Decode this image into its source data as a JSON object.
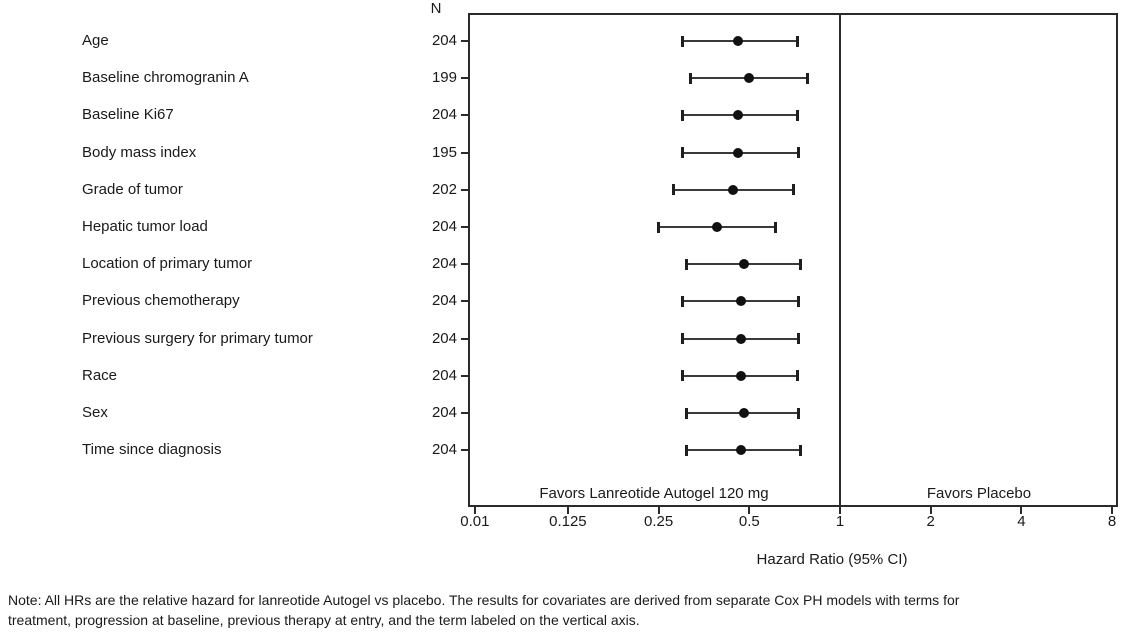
{
  "note": {
    "line1": "Note: All HRs are the relative hazard for lanreotide Autogel vs placebo. The results for covariates are derived from separate Cox PH models with terms for",
    "line2": "treatment, progression at baseline, previous therapy at entry, and the term labeled on the vertical axis."
  },
  "chart_data": {
    "type": "scatter",
    "subtype": "forest-plot",
    "title": "",
    "xlabel": "Hazard Ratio (95% CI)",
    "column_headers": {
      "n": "N"
    },
    "x_ticks": [
      "0.01",
      "0.125",
      "0.25",
      "0.5",
      "1",
      "2",
      "4",
      "8"
    ],
    "x_scale": "log2, leftmost tick 0.01 drawn one slot left of 0.125 (compressed)",
    "xlim_drawn": [
      0.01,
      8
    ],
    "reference_line_x": 1,
    "grid": false,
    "favors_left_label": "Favors Lanreotide Autogel 120 mg",
    "favors_right_label": "Favors Placebo",
    "rows": [
      {
        "label": "Age",
        "n": 204,
        "hr": 0.46,
        "ci_low": 0.3,
        "ci_high": 0.72
      },
      {
        "label": "Baseline chromogranin A",
        "n": 199,
        "hr": 0.5,
        "ci_low": 0.32,
        "ci_high": 0.78
      },
      {
        "label": "Baseline Ki67",
        "n": 204,
        "hr": 0.46,
        "ci_low": 0.3,
        "ci_high": 0.72
      },
      {
        "label": "Body mass index",
        "n": 195,
        "hr": 0.46,
        "ci_low": 0.3,
        "ci_high": 0.73
      },
      {
        "label": "Grade of tumor",
        "n": 202,
        "hr": 0.44,
        "ci_low": 0.28,
        "ci_high": 0.7
      },
      {
        "label": "Hepatic tumor load",
        "n": 204,
        "hr": 0.39,
        "ci_low": 0.25,
        "ci_high": 0.61
      },
      {
        "label": "Location of primary tumor",
        "n": 204,
        "hr": 0.48,
        "ci_low": 0.31,
        "ci_high": 0.74
      },
      {
        "label": "Previous chemotherapy",
        "n": 204,
        "hr": 0.47,
        "ci_low": 0.3,
        "ci_high": 0.73
      },
      {
        "label": "Previous surgery for primary tumor",
        "n": 204,
        "hr": 0.47,
        "ci_low": 0.3,
        "ci_high": 0.73
      },
      {
        "label": "Race",
        "n": 204,
        "hr": 0.47,
        "ci_low": 0.3,
        "ci_high": 0.72
      },
      {
        "label": "Sex",
        "n": 204,
        "hr": 0.48,
        "ci_low": 0.31,
        "ci_high": 0.73
      },
      {
        "label": "Time since diagnosis",
        "n": 204,
        "hr": 0.47,
        "ci_low": 0.31,
        "ci_high": 0.74
      }
    ],
    "colors": {
      "background": "#ffffff",
      "text": "#1a1a1a",
      "box_border": "#2b2b2b",
      "ci_line": "#3a3a3a",
      "marker": "#111111"
    }
  }
}
